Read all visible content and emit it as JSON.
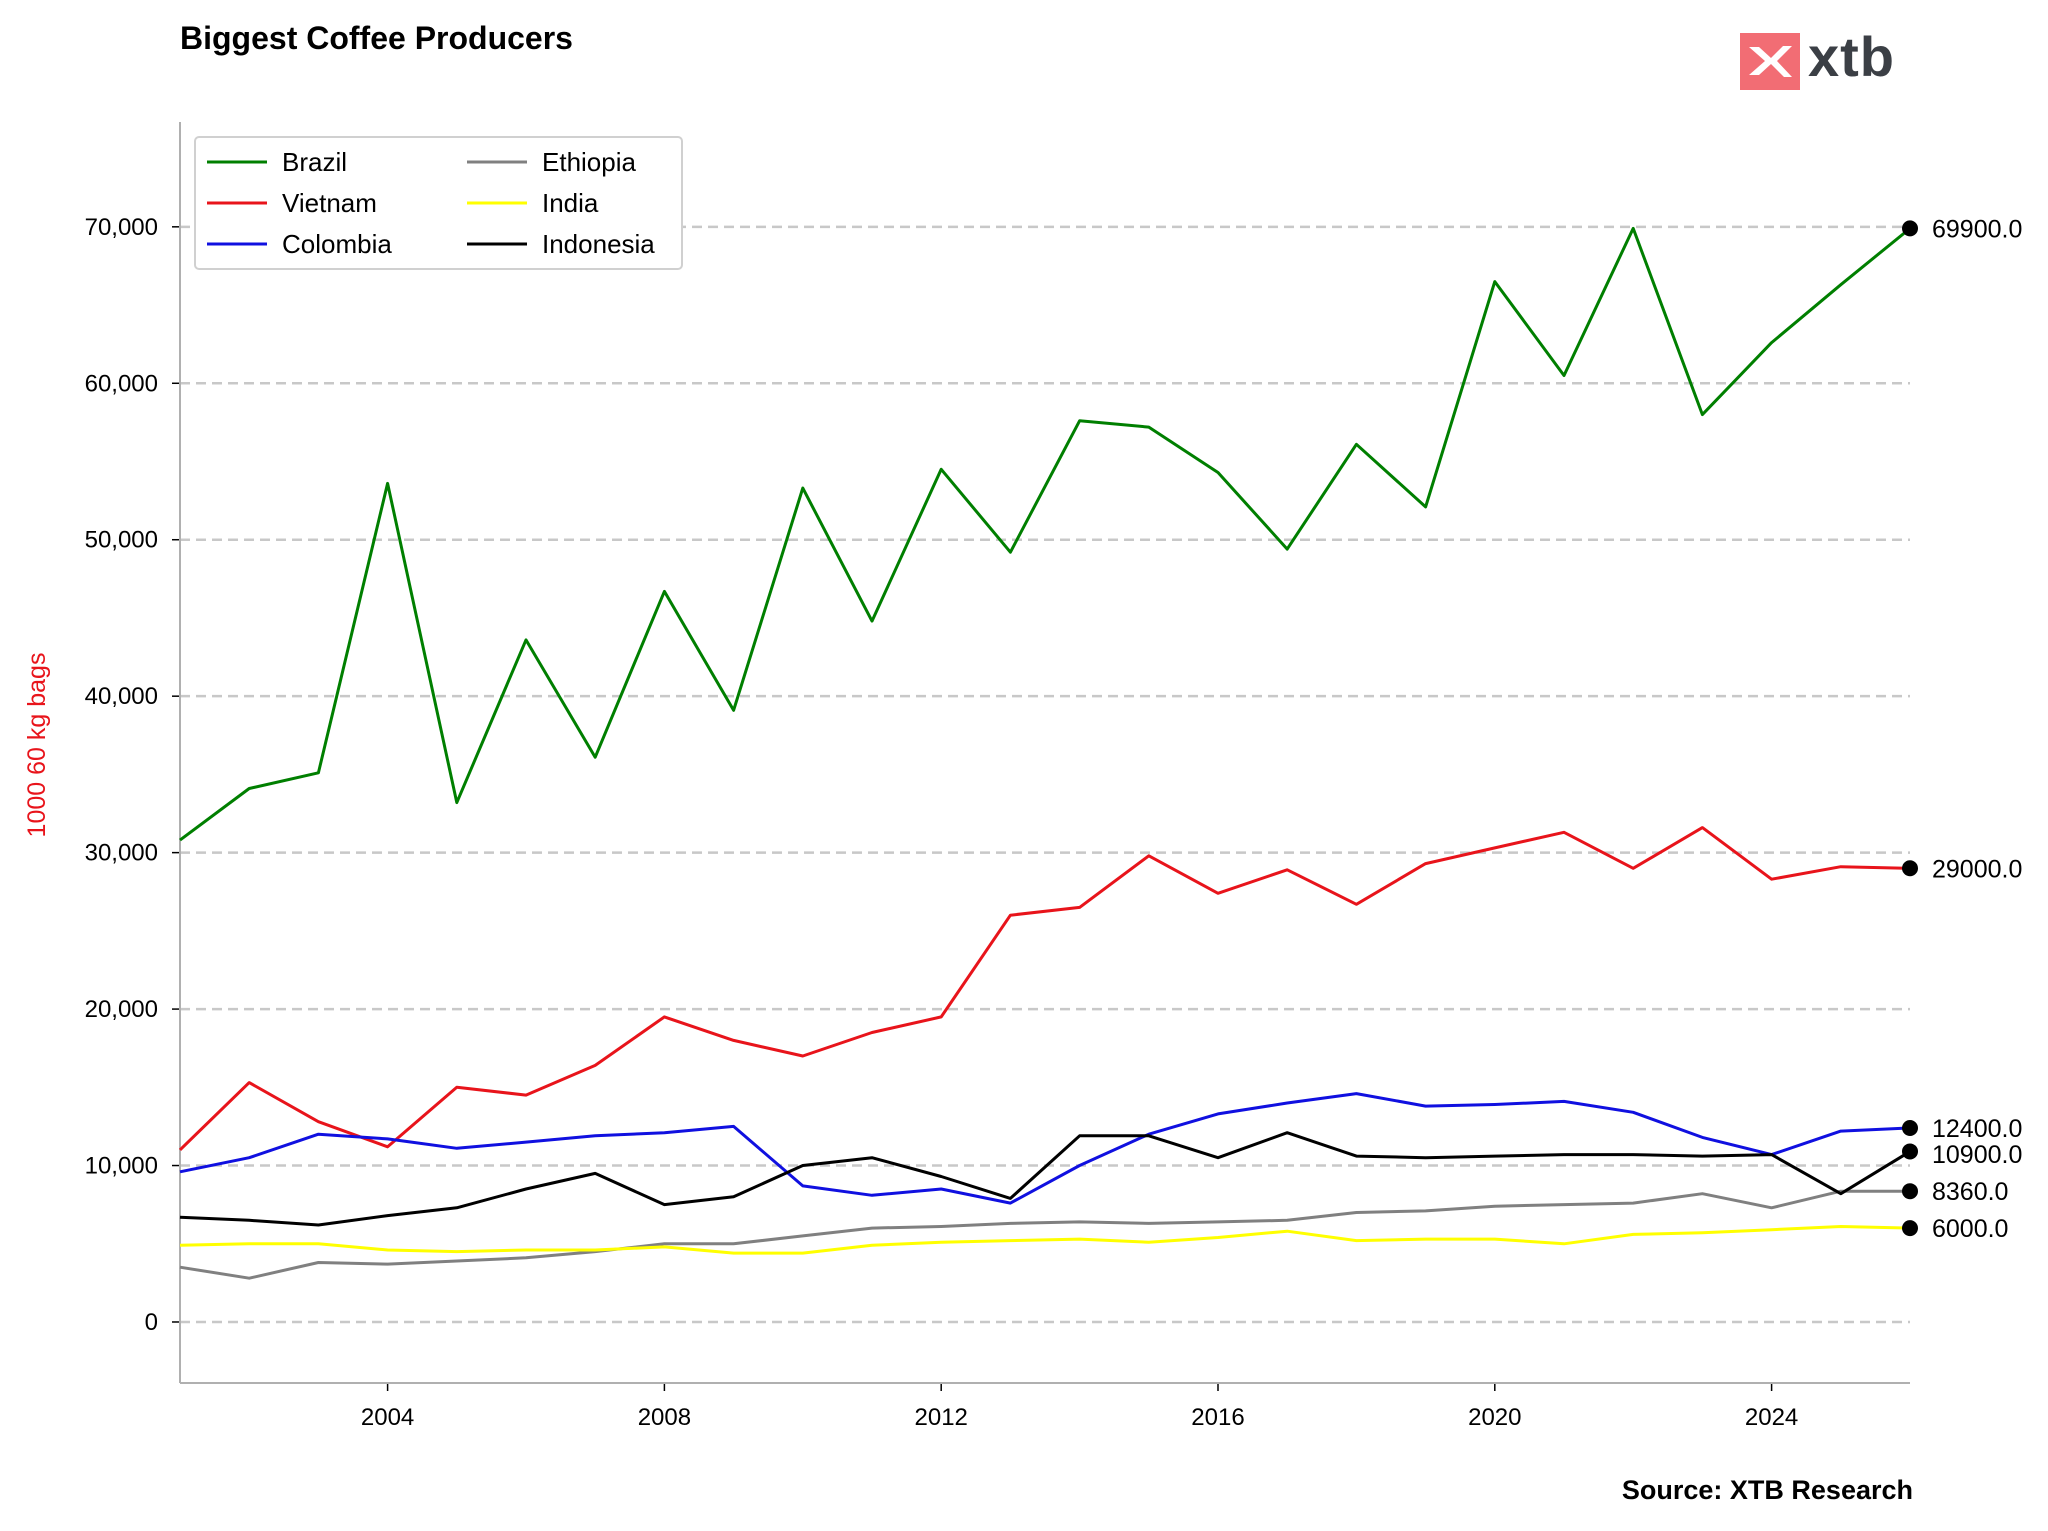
{
  "title": "Biggest Coffee Producers",
  "source": "Source: XTB Research",
  "logo": {
    "text": "xtb",
    "color": "#f26d74"
  },
  "chart_data": {
    "type": "line",
    "title": "Biggest Coffee Producers",
    "xlabel": "",
    "ylabel": "1000 60 kg bags",
    "ylabel_color": "#e8141b",
    "xlim": [
      2001,
      2026
    ],
    "ylim": [
      -3900,
      76700
    ],
    "grid": "horizontal dashed",
    "legend_position": "top-left",
    "x": [
      2001,
      2002,
      2003,
      2004,
      2005,
      2006,
      2007,
      2008,
      2009,
      2010,
      2011,
      2012,
      2013,
      2014,
      2015,
      2016,
      2017,
      2018,
      2019,
      2020,
      2021,
      2022,
      2023,
      2024,
      2025,
      2026
    ],
    "x_ticks": [
      "2004",
      "2008",
      "2012",
      "2016",
      "2020",
      "2024"
    ],
    "x_tick_values": [
      2004,
      2008,
      2012,
      2016,
      2020,
      2024
    ],
    "y_ticks": [
      "0",
      "10,000",
      "20,000",
      "30,000",
      "40,000",
      "50,000",
      "60,000",
      "70,000"
    ],
    "y_tick_values": [
      0,
      10000,
      20000,
      30000,
      40000,
      50000,
      60000,
      70000
    ],
    "series": [
      {
        "name": "Brazil",
        "color": "#007f00",
        "values": [
          30800,
          34100,
          35100,
          53600,
          33200,
          43600,
          36100,
          46700,
          39100,
          53300,
          44800,
          54500,
          49200,
          57600,
          57200,
          54300,
          49400,
          56100,
          52100,
          66500,
          60500,
          69900,
          58000,
          62600,
          66300,
          69900
        ],
        "end_label": "69900.0"
      },
      {
        "name": "Vietnam",
        "color": "#e8141b",
        "values": [
          11000,
          15300,
          12800,
          11200,
          15000,
          14500,
          16400,
          19500,
          18000,
          17000,
          18500,
          19500,
          26000,
          26500,
          29800,
          27400,
          28900,
          26700,
          29300,
          30300,
          31300,
          29000,
          31600,
          28300,
          29100,
          29000
        ],
        "end_label": "29000.0"
      },
      {
        "name": "Colombia",
        "color": "#1010e0",
        "values": [
          9600,
          10500,
          12000,
          11700,
          11100,
          11500,
          11900,
          12100,
          12500,
          8700,
          8100,
          8500,
          7600,
          10000,
          12000,
          13300,
          14000,
          14600,
          13800,
          13900,
          14100,
          13400,
          11800,
          10700,
          12200,
          12400
        ],
        "end_label": "12400.0"
      },
      {
        "name": "Ethiopia",
        "color": "#808080",
        "values": [
          3500,
          2800,
          3800,
          3700,
          3900,
          4100,
          4500,
          5000,
          5000,
          5500,
          6000,
          6100,
          6300,
          6400,
          6300,
          6400,
          6500,
          7000,
          7100,
          7400,
          7500,
          7600,
          8200,
          7300,
          8360,
          8360
        ],
        "end_label": "8360.0"
      },
      {
        "name": "India",
        "color": "#ffff00",
        "values": [
          4900,
          5000,
          5000,
          4600,
          4500,
          4600,
          4600,
          4800,
          4400,
          4400,
          4900,
          5100,
          5200,
          5300,
          5100,
          5400,
          5800,
          5200,
          5300,
          5300,
          5000,
          5600,
          5700,
          5900,
          6100,
          6000
        ],
        "end_label": "6000.0"
      },
      {
        "name": "Indonesia",
        "color": "#000000",
        "values": [
          6700,
          6500,
          6200,
          6800,
          7300,
          8500,
          9500,
          7500,
          8000,
          10000,
          10500,
          9300,
          7900,
          11900,
          11900,
          10500,
          12100,
          10600,
          10500,
          10600,
          10700,
          10700,
          10600,
          10700,
          8200,
          10900
        ],
        "end_label": "10900.0"
      }
    ]
  }
}
